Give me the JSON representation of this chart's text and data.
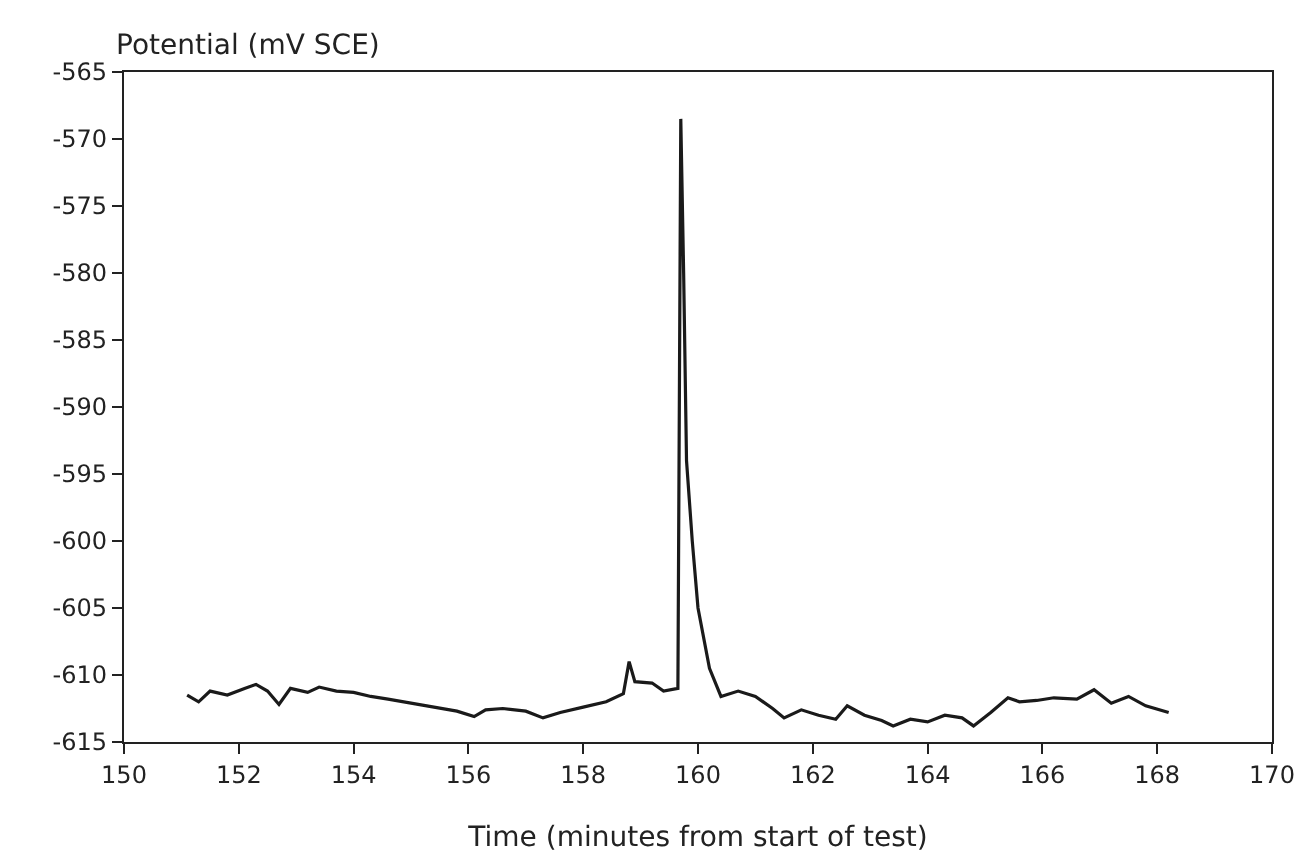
{
  "chart_data": {
    "type": "line",
    "ylabel": "Potential (mV SCE)",
    "xlabel": "Time (minutes from start of test)",
    "xlim": [
      150,
      170
    ],
    "xticks": [
      150,
      152,
      154,
      156,
      158,
      160,
      162,
      164,
      166,
      168,
      170
    ],
    "ylim": [
      -615,
      -565
    ],
    "yticks": [
      -615,
      -610,
      -605,
      -600,
      -595,
      -590,
      -585,
      -580,
      -575,
      -570,
      -565
    ],
    "marker": "none",
    "line_style": "solid",
    "series": [
      {
        "color": "#1a1a1a",
        "x": [
          151.1,
          151.3,
          151.5,
          151.8,
          152.1,
          152.3,
          152.5,
          152.7,
          152.9,
          153.2,
          153.4,
          153.7,
          154.0,
          154.3,
          154.6,
          155.0,
          155.4,
          155.8,
          156.1,
          156.3,
          156.6,
          157.0,
          157.3,
          157.6,
          158.0,
          158.4,
          158.7,
          158.8,
          158.9,
          159.2,
          159.4,
          159.65,
          159.7,
          159.75,
          159.8,
          159.9,
          160.0,
          160.2,
          160.4,
          160.7,
          161.0,
          161.3,
          161.5,
          161.8,
          162.1,
          162.4,
          162.6,
          162.9,
          163.2,
          163.4,
          163.7,
          164.0,
          164.3,
          164.6,
          164.8,
          165.1,
          165.4,
          165.6,
          165.9,
          166.2,
          166.6,
          166.9,
          167.2,
          167.5,
          167.8,
          168.2
        ],
        "values": [
          -611.5,
          -612,
          -611.2,
          -611.5,
          -611,
          -610.7,
          -611.2,
          -612.2,
          -611,
          -611.3,
          -610.9,
          -611.2,
          -611.3,
          -611.6,
          -611.8,
          -612.1,
          -612.4,
          -612.7,
          -613.1,
          -612.6,
          -612.5,
          -612.7,
          -613.2,
          -612.8,
          -612.4,
          -612,
          -611.4,
          -609,
          -610.5,
          -610.6,
          -611.2,
          -611,
          -568.5,
          -580,
          -594,
          -600,
          -605,
          -609.5,
          -611.6,
          -611.2,
          -611.6,
          -612.5,
          -613.2,
          -612.6,
          -613,
          -613.3,
          -612.3,
          -613,
          -613.4,
          -613.8,
          -613.3,
          -613.5,
          -613,
          -613.2,
          -613.8,
          -612.8,
          -611.7,
          -612,
          -611.9,
          -611.7,
          -611.8,
          -611.1,
          -612.1,
          -611.6,
          -612.3,
          -612.8
        ]
      }
    ]
  }
}
